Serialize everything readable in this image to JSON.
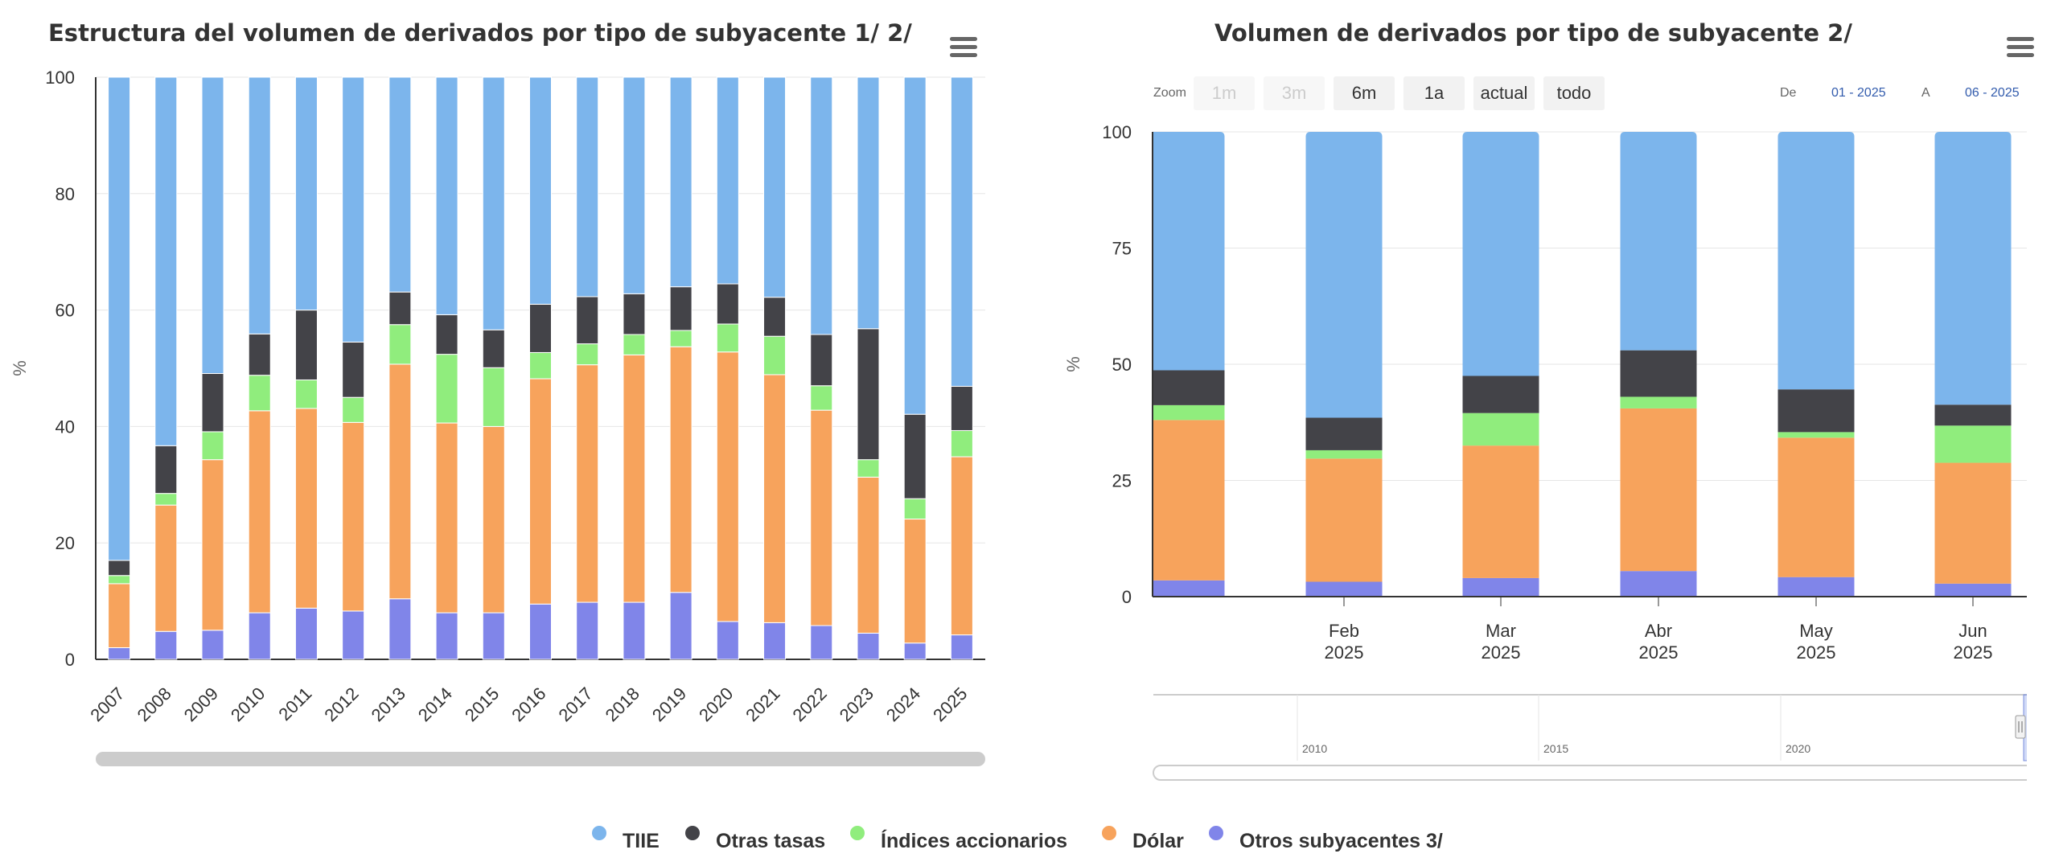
{
  "colors": {
    "tiie": "#7cb5ec",
    "otras_tasas": "#434348",
    "indices": "#90ed7d",
    "dolar": "#f7a35c",
    "otros": "#8085e9"
  },
  "legend": [
    {
      "label": "TIIE",
      "color": "#7cb5ec"
    },
    {
      "label": "Otras tasas",
      "color": "#434348"
    },
    {
      "label": "Índices accionarios",
      "color": "#90ed7d"
    },
    {
      "label": "Dólar",
      "color": "#f7a35c"
    },
    {
      "label": "Otros subyacentes 3/",
      "color": "#8085e9"
    }
  ],
  "chart1": {
    "title": "Estructura del volumen de derivados por tipo de subyacente 1/ 2/",
    "menu_icon": "hamburger-menu-icon"
  },
  "chart2": {
    "title": "Volumen de derivados por tipo de subyacente 2/",
    "menu_icon": "hamburger-menu-icon",
    "range_selector": {
      "zoom_label": "Zoom",
      "buttons": [
        {
          "label": "1m",
          "disabled": true
        },
        {
          "label": "3m",
          "disabled": true
        },
        {
          "label": "6m",
          "disabled": false
        },
        {
          "label": "1a",
          "disabled": false
        },
        {
          "label": "actual",
          "disabled": false
        },
        {
          "label": "todo",
          "disabled": false
        }
      ],
      "from_label": "De",
      "from_value": "01 - 2025",
      "to_label": "A",
      "to_value": "06 - 2025"
    },
    "navigator_labels": [
      "2010",
      "2015",
      "2020"
    ]
  },
  "chart_data": [
    {
      "type": "bar",
      "stacking": "percent",
      "title": "Estructura del volumen de derivados por tipo de subyacente 1/ 2/",
      "xlabel": "",
      "ylabel": "%",
      "ylim": [
        0,
        100
      ],
      "yticks": [
        0,
        20,
        40,
        60,
        80,
        100
      ],
      "categories": [
        "2007",
        "2008",
        "2009",
        "2010",
        "2011",
        "2012",
        "2013",
        "2014",
        "2015",
        "2016",
        "2017",
        "2018",
        "2019",
        "2020",
        "2021",
        "2022",
        "2023",
        "2024",
        "2025"
      ],
      "series": [
        {
          "name": "Otros subyacentes 3/",
          "values": [
            2,
            4.8,
            5,
            8,
            8.8,
            8.3,
            10.4,
            8,
            8,
            9.5,
            9.8,
            9.8,
            11.5,
            6.5,
            6.3,
            5.8,
            4.5,
            2.8,
            4.2
          ]
        },
        {
          "name": "Dólar",
          "values": [
            11,
            21.7,
            29.3,
            34.7,
            34.3,
            32.4,
            40.3,
            32.6,
            32,
            38.7,
            40.8,
            42.5,
            42.2,
            46.3,
            42.6,
            37,
            26.8,
            21.3,
            30.6
          ]
        },
        {
          "name": "Índices accionarios",
          "values": [
            1.4,
            2,
            4.8,
            6.1,
            4.9,
            4.3,
            6.8,
            11.8,
            10.1,
            4.5,
            3.6,
            3.5,
            2.8,
            4.8,
            6.6,
            4.2,
            3,
            3.5,
            4.5
          ]
        },
        {
          "name": "Otras tasas",
          "values": [
            2.6,
            8.2,
            10,
            7.1,
            12,
            9.5,
            5.6,
            6.8,
            6.5,
            8.3,
            8.1,
            7,
            7.5,
            6.9,
            6.7,
            8.8,
            22.5,
            14.5,
            7.6
          ]
        },
        {
          "name": "TIIE",
          "values": [
            83,
            63.3,
            50.9,
            44.1,
            40,
            45.5,
            36.9,
            40.8,
            43.4,
            39,
            37.7,
            37.2,
            36,
            35.5,
            37.8,
            44.2,
            43.2,
            57.9,
            53.1
          ]
        }
      ]
    },
    {
      "type": "bar",
      "stacking": "percent",
      "title": "Volumen de derivados por tipo de subyacente 2/",
      "xlabel": "",
      "ylabel": "%",
      "ylim": [
        0,
        100
      ],
      "yticks": [
        0,
        25,
        50,
        75,
        100
      ],
      "categories": [
        [
          "",
          ""
        ],
        [
          "Feb",
          "2025"
        ],
        [
          "Mar",
          "2025"
        ],
        [
          "Abr",
          "2025"
        ],
        [
          "May",
          "2025"
        ],
        [
          "Jun",
          "2025"
        ]
      ],
      "series": [
        {
          "name": "Otros subyacentes 3/",
          "values": [
            3.5,
            3.2,
            4,
            5.5,
            4.2,
            2.8
          ]
        },
        {
          "name": "Dólar",
          "values": [
            34.5,
            26.5,
            28.5,
            35,
            30,
            26
          ]
        },
        {
          "name": "Índices accionarios",
          "values": [
            3.2,
            1.8,
            7,
            2.5,
            1.2,
            8
          ]
        },
        {
          "name": "Otras tasas",
          "values": [
            7.5,
            7,
            8,
            10,
            9.2,
            4.5
          ]
        },
        {
          "name": "TIIE",
          "values": [
            51.3,
            61.5,
            52.5,
            47,
            55.4,
            58.7
          ]
        }
      ]
    }
  ]
}
